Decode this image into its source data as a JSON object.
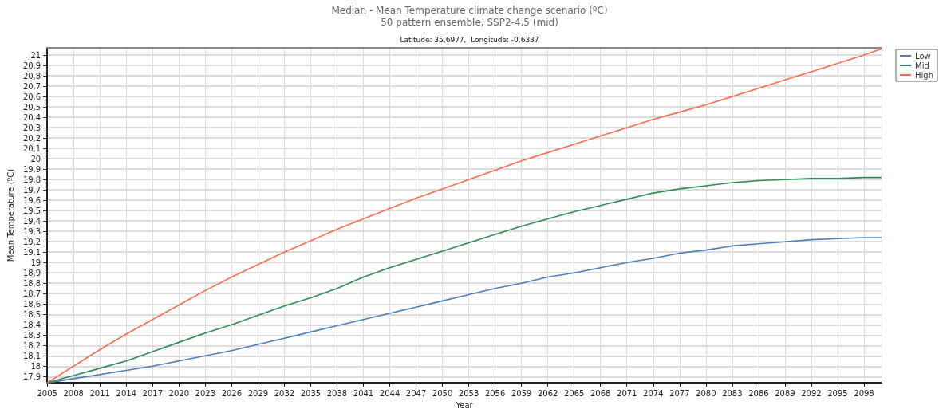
{
  "chart_data": {
    "type": "line",
    "title": "Median - Mean Temperature climate change scenario (ºC)",
    "subtitle": "50 pattern ensemble, SSP2-4.5 (mid)",
    "annotations": [
      "Latitude: 35,6977,  Longitude: -0,6337"
    ],
    "xlabel": "Year",
    "ylabel": "Mean Temperature (ºC)",
    "x": [
      2005,
      2008,
      2011,
      2014,
      2017,
      2020,
      2023,
      2026,
      2029,
      2032,
      2035,
      2038,
      2041,
      2044,
      2047,
      2050,
      2053,
      2056,
      2059,
      2062,
      2065,
      2068,
      2071,
      2074,
      2077,
      2080,
      2083,
      2086,
      2089,
      2092,
      2095,
      2098,
      2100
    ],
    "series": [
      {
        "name": "Low",
        "color": "#4a7ebb",
        "values": [
          17.84,
          17.88,
          17.92,
          17.96,
          18.0,
          18.05,
          18.1,
          18.15,
          18.21,
          18.27,
          18.33,
          18.39,
          18.45,
          18.51,
          18.57,
          18.63,
          18.69,
          18.75,
          18.8,
          18.86,
          18.9,
          18.95,
          19.0,
          19.04,
          19.09,
          19.12,
          19.16,
          19.18,
          19.2,
          19.22,
          19.23,
          19.24,
          19.24
        ]
      },
      {
        "name": "Mid",
        "color": "#2e8b57",
        "values": [
          17.84,
          17.91,
          17.98,
          18.05,
          18.14,
          18.23,
          18.32,
          18.4,
          18.49,
          18.58,
          18.66,
          18.75,
          18.86,
          18.95,
          19.03,
          19.11,
          19.19,
          19.27,
          19.35,
          19.42,
          19.49,
          19.55,
          19.61,
          19.67,
          19.71,
          19.74,
          19.77,
          19.79,
          19.8,
          19.81,
          19.81,
          19.82,
          19.82
        ]
      },
      {
        "name": "High",
        "color": "#ff6a50",
        "values": [
          17.84,
          18.0,
          18.16,
          18.31,
          18.45,
          18.59,
          18.73,
          18.86,
          18.98,
          19.1,
          19.21,
          19.32,
          19.42,
          19.52,
          19.62,
          19.71,
          19.8,
          19.89,
          19.98,
          20.06,
          20.14,
          20.22,
          20.3,
          20.38,
          20.45,
          20.52,
          20.6,
          20.68,
          20.76,
          20.84,
          20.92,
          21.0,
          21.06
        ]
      }
    ],
    "xlim": [
      2005,
      2100
    ],
    "xticks": [
      2005,
      2008,
      2011,
      2014,
      2017,
      2020,
      2023,
      2026,
      2029,
      2032,
      2035,
      2038,
      2041,
      2044,
      2047,
      2050,
      2053,
      2056,
      2059,
      2062,
      2065,
      2068,
      2071,
      2074,
      2077,
      2080,
      2083,
      2086,
      2089,
      2092,
      2095,
      2098
    ],
    "ylim": [
      17.84,
      21.07
    ],
    "yticks": [
      {
        "value": 17.9,
        "label": "17,9"
      },
      {
        "value": 18,
        "label": "18"
      },
      {
        "value": 18.1,
        "label": "18,1"
      },
      {
        "value": 18.2,
        "label": "18,2"
      },
      {
        "value": 18.3,
        "label": "18,3"
      },
      {
        "value": 18.4,
        "label": "18,4"
      },
      {
        "value": 18.5,
        "label": "18,5"
      },
      {
        "value": 18.6,
        "label": "18,6"
      },
      {
        "value": 18.7,
        "label": "18,7"
      },
      {
        "value": 18.8,
        "label": "18,8"
      },
      {
        "value": 18.9,
        "label": "18,9"
      },
      {
        "value": 19,
        "label": "19"
      },
      {
        "value": 19.1,
        "label": "19,1"
      },
      {
        "value": 19.2,
        "label": "19,2"
      },
      {
        "value": 19.3,
        "label": "19,3"
      },
      {
        "value": 19.4,
        "label": "19,4"
      },
      {
        "value": 19.5,
        "label": "19,5"
      },
      {
        "value": 19.6,
        "label": "19,6"
      },
      {
        "value": 19.7,
        "label": "19,7"
      },
      {
        "value": 19.8,
        "label": "19,8"
      },
      {
        "value": 19.9,
        "label": "19,9"
      },
      {
        "value": 20,
        "label": "20"
      },
      {
        "value": 20.1,
        "label": "20,1"
      },
      {
        "value": 20.2,
        "label": "20,2"
      },
      {
        "value": 20.3,
        "label": "20,3"
      },
      {
        "value": 20.4,
        "label": "20,4"
      },
      {
        "value": 20.5,
        "label": "20,5"
      },
      {
        "value": 20.6,
        "label": "20,6"
      },
      {
        "value": 20.7,
        "label": "20,7"
      },
      {
        "value": 20.8,
        "label": "20,8"
      },
      {
        "value": 20.9,
        "label": "20,9"
      },
      {
        "value": 21,
        "label": "21"
      }
    ],
    "grid": true,
    "legend": "top right",
    "marker": "none",
    "line_style": "solid"
  }
}
